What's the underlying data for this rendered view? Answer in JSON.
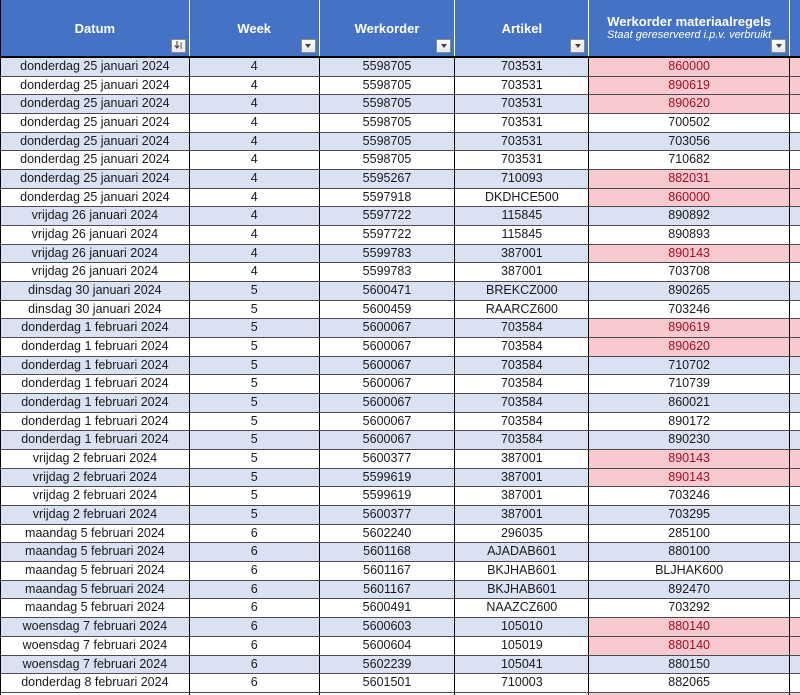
{
  "table": {
    "columns": [
      {
        "key": "datum",
        "label": "Datum",
        "filter_icon": "sort-filter"
      },
      {
        "key": "week",
        "label": "Week",
        "filter_icon": "filter"
      },
      {
        "key": "werkorder",
        "label": "Werkorder",
        "filter_icon": "filter"
      },
      {
        "key": "artikel",
        "label": "Artikel",
        "filter_icon": "filter"
      },
      {
        "key": "materiaalregels",
        "label": "Werkorder materiaalregels",
        "sublabel": "Staat gereserveerd i.p.v. verbruikt",
        "filter_icon": "filter"
      }
    ],
    "rows": [
      {
        "datum": "donderdag 25 januari 2024",
        "week": "4",
        "werkorder": "5598705",
        "artikel": "703531",
        "materiaalregels": "860000",
        "reserved": true
      },
      {
        "datum": "donderdag 25 januari 2024",
        "week": "4",
        "werkorder": "5598705",
        "artikel": "703531",
        "materiaalregels": "890619",
        "reserved": true
      },
      {
        "datum": "donderdag 25 januari 2024",
        "week": "4",
        "werkorder": "5598705",
        "artikel": "703531",
        "materiaalregels": "890620",
        "reserved": true
      },
      {
        "datum": "donderdag 25 januari 2024",
        "week": "4",
        "werkorder": "5598705",
        "artikel": "703531",
        "materiaalregels": "700502",
        "reserved": false
      },
      {
        "datum": "donderdag 25 januari 2024",
        "week": "4",
        "werkorder": "5598705",
        "artikel": "703531",
        "materiaalregels": "703056",
        "reserved": false
      },
      {
        "datum": "donderdag 25 januari 2024",
        "week": "4",
        "werkorder": "5598705",
        "artikel": "703531",
        "materiaalregels": "710682",
        "reserved": false
      },
      {
        "datum": "donderdag 25 januari 2024",
        "week": "4",
        "werkorder": "5595267",
        "artikel": "710093",
        "materiaalregels": "882031",
        "reserved": true
      },
      {
        "datum": "donderdag 25 januari 2024",
        "week": "4",
        "werkorder": "5597918",
        "artikel": "DKDHCE500",
        "materiaalregels": "860000",
        "reserved": true
      },
      {
        "datum": "vrijdag 26 januari 2024",
        "week": "4",
        "werkorder": "5597722",
        "artikel": "115845",
        "materiaalregels": "890892",
        "reserved": false
      },
      {
        "datum": "vrijdag 26 januari 2024",
        "week": "4",
        "werkorder": "5597722",
        "artikel": "115845",
        "materiaalregels": "890893",
        "reserved": false
      },
      {
        "datum": "vrijdag 26 januari 2024",
        "week": "4",
        "werkorder": "5599783",
        "artikel": "387001",
        "materiaalregels": "890143",
        "reserved": true
      },
      {
        "datum": "vrijdag 26 januari 2024",
        "week": "4",
        "werkorder": "5599783",
        "artikel": "387001",
        "materiaalregels": "703708",
        "reserved": false
      },
      {
        "datum": "dinsdag 30 januari 2024",
        "week": "5",
        "werkorder": "5600471",
        "artikel": "BREKCZ000",
        "materiaalregels": "890265",
        "reserved": false
      },
      {
        "datum": "dinsdag 30 januari 2024",
        "week": "5",
        "werkorder": "5600459",
        "artikel": "RAARCZ600",
        "materiaalregels": "703246",
        "reserved": false
      },
      {
        "datum": "donderdag 1 februari 2024",
        "week": "5",
        "werkorder": "5600067",
        "artikel": "703584",
        "materiaalregels": "890619",
        "reserved": true
      },
      {
        "datum": "donderdag 1 februari 2024",
        "week": "5",
        "werkorder": "5600067",
        "artikel": "703584",
        "materiaalregels": "890620",
        "reserved": true
      },
      {
        "datum": "donderdag 1 februari 2024",
        "week": "5",
        "werkorder": "5600067",
        "artikel": "703584",
        "materiaalregels": "710702",
        "reserved": false
      },
      {
        "datum": "donderdag 1 februari 2024",
        "week": "5",
        "werkorder": "5600067",
        "artikel": "703584",
        "materiaalregels": "710739",
        "reserved": false
      },
      {
        "datum": "donderdag 1 februari 2024",
        "week": "5",
        "werkorder": "5600067",
        "artikel": "703584",
        "materiaalregels": "860021",
        "reserved": false
      },
      {
        "datum": "donderdag 1 februari 2024",
        "week": "5",
        "werkorder": "5600067",
        "artikel": "703584",
        "materiaalregels": "890172",
        "reserved": false
      },
      {
        "datum": "donderdag 1 februari 2024",
        "week": "5",
        "werkorder": "5600067",
        "artikel": "703584",
        "materiaalregels": "890230",
        "reserved": false
      },
      {
        "datum": "vrijdag 2 februari 2024",
        "week": "5",
        "werkorder": "5600377",
        "artikel": "387001",
        "materiaalregels": "890143",
        "reserved": true
      },
      {
        "datum": "vrijdag 2 februari 2024",
        "week": "5",
        "werkorder": "5599619",
        "artikel": "387001",
        "materiaalregels": "890143",
        "reserved": true
      },
      {
        "datum": "vrijdag 2 februari 2024",
        "week": "5",
        "werkorder": "5599619",
        "artikel": "387001",
        "materiaalregels": "703246",
        "reserved": false
      },
      {
        "datum": "vrijdag 2 februari 2024",
        "week": "5",
        "werkorder": "5600377",
        "artikel": "387001",
        "materiaalregels": "703295",
        "reserved": false
      },
      {
        "datum": "maandag 5 februari 2024",
        "week": "6",
        "werkorder": "5602240",
        "artikel": "296035",
        "materiaalregels": "285100",
        "reserved": false
      },
      {
        "datum": "maandag 5 februari 2024",
        "week": "6",
        "werkorder": "5601168",
        "artikel": "AJADAB601",
        "materiaalregels": "880100",
        "reserved": false
      },
      {
        "datum": "maandag 5 februari 2024",
        "week": "6",
        "werkorder": "5601167",
        "artikel": "BKJHAB601",
        "materiaalregels": "BLJHAK600",
        "reserved": false
      },
      {
        "datum": "maandag 5 februari 2024",
        "week": "6",
        "werkorder": "5601167",
        "artikel": "BKJHAB601",
        "materiaalregels": "892470",
        "reserved": false
      },
      {
        "datum": "maandag 5 februari 2024",
        "week": "6",
        "werkorder": "5600491",
        "artikel": "NAAZCZ600",
        "materiaalregels": "703292",
        "reserved": false
      },
      {
        "datum": "woensdag 7 februari 2024",
        "week": "6",
        "werkorder": "5600603",
        "artikel": "105010",
        "materiaalregels": "880140",
        "reserved": true
      },
      {
        "datum": "woensdag 7 februari 2024",
        "week": "6",
        "werkorder": "5600604",
        "artikel": "105019",
        "materiaalregels": "880140",
        "reserved": true
      },
      {
        "datum": "woensdag 7 februari 2024",
        "week": "6",
        "werkorder": "5602239",
        "artikel": "105041",
        "materiaalregels": "880150",
        "reserved": false
      },
      {
        "datum": "donderdag 8 februari 2024",
        "week": "6",
        "werkorder": "5601501",
        "artikel": "710003",
        "materiaalregels": "882065",
        "reserved": false
      }
    ],
    "colors": {
      "header_bg": "#4472C4",
      "header_text": "#FFFFFF",
      "band_row": "#DAE1F3",
      "reserved_bg": "#F8C9CF",
      "reserved_text": "#A50D21"
    }
  }
}
